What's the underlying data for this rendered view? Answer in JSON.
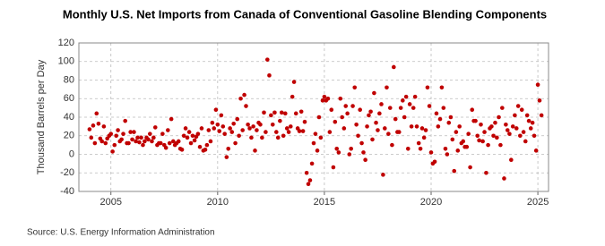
{
  "chart_data": {
    "type": "scatter",
    "title": "Monthly U.S. Net Imports from Canada of Conventional Gasoline Blending Components",
    "y_label": "Thousand Barrels per Day",
    "source": "Source: U.S. Energy Information Administration",
    "color": "#c00000",
    "grid": true,
    "xlim": [
      2003.5,
      2025.5
    ],
    "xticks": [
      2005,
      2010,
      2015,
      2020,
      2025
    ],
    "ylim": [
      -40,
      120
    ],
    "yticks": [
      -40,
      -20,
      0,
      20,
      40,
      60,
      80,
      100,
      120
    ],
    "x": [
      2004.0,
      2004.08,
      2004.17,
      2004.25,
      2004.33,
      2004.42,
      2004.5,
      2004.58,
      2004.67,
      2004.75,
      2004.83,
      2004.92,
      2005.0,
      2005.08,
      2005.17,
      2005.25,
      2005.33,
      2005.42,
      2005.5,
      2005.58,
      2005.67,
      2005.75,
      2005.83,
      2005.92,
      2006.0,
      2006.08,
      2006.17,
      2006.25,
      2006.33,
      2006.42,
      2006.5,
      2006.58,
      2006.67,
      2006.75,
      2006.83,
      2006.92,
      2007.0,
      2007.08,
      2007.17,
      2007.25,
      2007.33,
      2007.42,
      2007.5,
      2007.58,
      2007.67,
      2007.75,
      2007.83,
      2007.92,
      2008.0,
      2008.08,
      2008.17,
      2008.25,
      2008.33,
      2008.42,
      2008.5,
      2008.58,
      2008.67,
      2008.75,
      2008.83,
      2008.92,
      2009.0,
      2009.08,
      2009.17,
      2009.25,
      2009.33,
      2009.42,
      2009.5,
      2009.58,
      2009.67,
      2009.75,
      2009.83,
      2009.92,
      2010.0,
      2010.08,
      2010.17,
      2010.25,
      2010.33,
      2010.42,
      2010.5,
      2010.58,
      2010.67,
      2010.75,
      2010.83,
      2010.92,
      2011.0,
      2011.08,
      2011.17,
      2011.25,
      2011.33,
      2011.42,
      2011.5,
      2011.58,
      2011.67,
      2011.75,
      2011.83,
      2011.92,
      2012.0,
      2012.08,
      2012.17,
      2012.25,
      2012.33,
      2012.42,
      2012.5,
      2012.58,
      2012.67,
      2012.75,
      2012.83,
      2012.92,
      2013.0,
      2013.08,
      2013.17,
      2013.25,
      2013.33,
      2013.42,
      2013.5,
      2013.58,
      2013.67,
      2013.75,
      2013.83,
      2013.92,
      2014.0,
      2014.08,
      2014.17,
      2014.25,
      2014.33,
      2014.42,
      2014.5,
      2014.58,
      2014.67,
      2014.75,
      2014.83,
      2014.92,
      2015.0,
      2015.08,
      2015.17,
      2015.25,
      2015.33,
      2015.42,
      2015.5,
      2015.58,
      2015.67,
      2015.75,
      2015.83,
      2015.92,
      2016.0,
      2016.08,
      2016.17,
      2016.25,
      2016.33,
      2016.42,
      2016.5,
      2016.58,
      2016.67,
      2016.75,
      2016.83,
      2016.92,
      2017.0,
      2017.08,
      2017.17,
      2017.25,
      2017.33,
      2017.42,
      2017.5,
      2017.58,
      2017.67,
      2017.75,
      2017.83,
      2017.92,
      2018.0,
      2018.08,
      2018.17,
      2018.25,
      2018.33,
      2018.42,
      2018.5,
      2018.58,
      2018.67,
      2018.75,
      2018.83,
      2018.92,
      2019.0,
      2019.08,
      2019.17,
      2019.25,
      2019.33,
      2019.42,
      2019.5,
      2019.58,
      2019.67,
      2019.75,
      2019.83,
      2019.92,
      2020.0,
      2020.08,
      2020.17,
      2020.25,
      2020.33,
      2020.42,
      2020.5,
      2020.58,
      2020.67,
      2020.75,
      2020.83,
      2020.92,
      2021.0,
      2021.08,
      2021.17,
      2021.25,
      2021.33,
      2021.42,
      2021.5,
      2021.58,
      2021.67,
      2021.75,
      2021.83,
      2021.92,
      2022.0,
      2022.08,
      2022.17,
      2022.25,
      2022.33,
      2022.42,
      2022.5,
      2022.58,
      2022.67,
      2022.75,
      2022.83,
      2022.92,
      2023.0,
      2023.08,
      2023.17,
      2023.25,
      2023.33,
      2023.42,
      2023.5,
      2023.58,
      2023.67,
      2023.75,
      2023.83,
      2023.92,
      2024.0,
      2024.08,
      2024.17,
      2024.25,
      2024.33,
      2024.42,
      2024.5,
      2024.58,
      2024.67,
      2024.75,
      2024.83,
      2024.92,
      2025.0,
      2025.08,
      2025.17
    ],
    "values": [
      27,
      18,
      31,
      12,
      44,
      33,
      17,
      14,
      30,
      12,
      17,
      20,
      22,
      3,
      10,
      20,
      26,
      14,
      16,
      22,
      36,
      12,
      12,
      24,
      16,
      24,
      14,
      18,
      13,
      18,
      10,
      14,
      18,
      16,
      22,
      14,
      18,
      29,
      10,
      12,
      12,
      22,
      10,
      7,
      26,
      12,
      38,
      14,
      10,
      12,
      14,
      6,
      5,
      20,
      28,
      18,
      24,
      12,
      20,
      15,
      19,
      22,
      8,
      28,
      4,
      5,
      10,
      26,
      14,
      34,
      28,
      48,
      32,
      25,
      42,
      30,
      22,
      -3,
      6,
      28,
      24,
      33,
      12,
      38,
      20,
      60,
      26,
      64,
      52,
      32,
      28,
      18,
      30,
      4,
      26,
      34,
      32,
      18,
      45,
      24,
      102,
      85,
      42,
      32,
      45,
      24,
      18,
      36,
      45,
      20,
      44,
      28,
      24,
      30,
      62,
      78,
      44,
      28,
      25,
      46,
      25,
      35,
      -20,
      -32,
      -28,
      -10,
      12,
      22,
      4,
      40,
      18,
      58,
      62,
      58,
      60,
      24,
      48,
      -14,
      35,
      6,
      2,
      60,
      40,
      28,
      52,
      44,
      0,
      6,
      52,
      72,
      32,
      20,
      48,
      12,
      2,
      -6,
      30,
      42,
      46,
      16,
      66,
      34,
      26,
      44,
      54,
      -22,
      28,
      72,
      22,
      50,
      10,
      94,
      38,
      24,
      24,
      50,
      58,
      40,
      62,
      6,
      54,
      30,
      50,
      62,
      30,
      12,
      6,
      28,
      18,
      26,
      72,
      52,
      2,
      -10,
      -8,
      44,
      30,
      38,
      72,
      50,
      6,
      0,
      34,
      40,
      16,
      -18,
      24,
      4,
      30,
      12,
      14,
      8,
      8,
      22,
      -14,
      48,
      36,
      36,
      20,
      15,
      32,
      14,
      24,
      -20,
      10,
      28,
      30,
      20,
      34,
      18,
      40,
      10,
      50,
      -26,
      32,
      26,
      22,
      -6,
      30,
      42,
      28,
      52,
      20,
      48,
      24,
      14,
      42,
      36,
      28,
      34,
      20,
      4,
      75,
      58,
      42
    ]
  }
}
